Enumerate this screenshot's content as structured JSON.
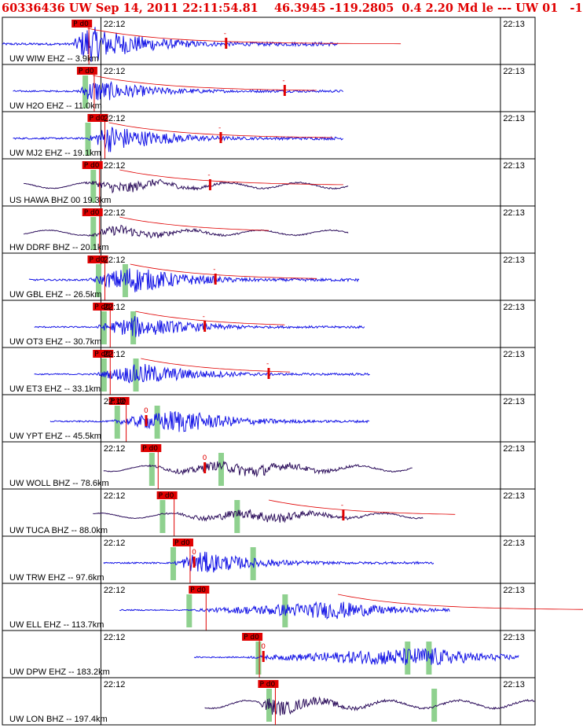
{
  "header": {
    "title": "60336436 UW Sep 14, 2011 22:11:54.81    46.3945 -119.2805  0.4 2.20 Md le --- UW 01   -1"
  },
  "colors": {
    "title": "#e00000",
    "short_period": "#1414e6",
    "broadband": "#2d0f5c",
    "pick_box": "#e00000",
    "coda_line": "#e00000",
    "phase_band": "#8fd18f",
    "frame": "#000000"
  },
  "chart_data": {
    "type": "seismogram",
    "x_axis": {
      "start_tick": "22:12",
      "end_tick": "22:13"
    },
    "traces": [
      {
        "label": "UW WIW EHZ -- 3.9km",
        "pick": "P d0",
        "tail_mark": "-",
        "type": "short",
        "amp": 0.95,
        "start": 0.0,
        "end": 0.63,
        "pick_x": 0.13,
        "peak": 0.16,
        "coda": 0.42,
        "tail_x": 0.42,
        "bands": []
      },
      {
        "label": "UW H2O EHZ -- 11.0km",
        "pick": "P d0",
        "tail_mark": "-",
        "type": "short",
        "amp": 0.6,
        "start": 0.02,
        "end": 0.64,
        "pick_x": 0.14,
        "peak": 0.17,
        "coda": 0.3,
        "tail_x": 0.53,
        "bands": [
          0.155
        ]
      },
      {
        "label": "UW MJ2 EHZ -- 19.1km",
        "pick": "P d0",
        "tail_mark": "-",
        "type": "short",
        "amp": 0.7,
        "start": 0.02,
        "end": 0.64,
        "pick_x": 0.16,
        "peak": 0.2,
        "coda": 0.3,
        "tail_x": 0.41,
        "bands": [
          0.16
        ]
      },
      {
        "label": "US HAWA BHZ 00 19.3km",
        "pick": "P d0",
        "tail_mark": "-",
        "type": "broad",
        "amp": 0.4,
        "start": 0.04,
        "end": 0.65,
        "pick_x": 0.15,
        "peak": 0.22,
        "coda": 0.3,
        "tail_x": 0.39,
        "bands": [
          0.17
        ]
      },
      {
        "label": "HW DDRF BHZ -- 20.1km",
        "pick": "P d0",
        "tail_mark": "",
        "type": "broad",
        "amp": 0.35,
        "start": 0.04,
        "end": 0.65,
        "pick_x": 0.15,
        "peak": 0.22,
        "coda": 0.2,
        "tail_x": 0.38,
        "bands": [
          0.17
        ]
      },
      {
        "label": "UW GBL EHZ -- 26.5km",
        "pick": "P d0",
        "tail_mark": "-",
        "type": "short",
        "amp": 0.7,
        "start": 0.05,
        "end": 0.67,
        "pick_x": 0.16,
        "peak": 0.24,
        "coda": 0.25,
        "tail_x": 0.4,
        "bands": [
          0.18,
          0.23
        ]
      },
      {
        "label": "UW OT3 EHZ -- 30.7km",
        "pick": "P d0",
        "tail_mark": "-",
        "type": "short",
        "amp": 0.55,
        "start": 0.06,
        "end": 0.68,
        "pick_x": 0.17,
        "peak": 0.25,
        "coda": 0.2,
        "tail_x": 0.38,
        "bands": [
          0.19,
          0.245
        ]
      },
      {
        "label": "UW ET3 EHZ -- 33.1km",
        "pick": "P d0",
        "tail_mark": "-",
        "type": "short",
        "amp": 0.55,
        "start": 0.06,
        "end": 0.69,
        "pick_x": 0.17,
        "peak": 0.26,
        "coda": 0.2,
        "tail_x": 0.5,
        "bands": [
          0.19,
          0.25
        ]
      },
      {
        "label": "UW YPT EHZ -- 45.5km",
        "pick": "P d0",
        "tail_mark": "0",
        "type": "short",
        "amp": 0.6,
        "start": 0.09,
        "end": 0.69,
        "pick_x": 0.2,
        "peak": 0.33,
        "coda": 0.0,
        "tail_x": 0.27,
        "bands": [
          0.215,
          0.29
        ]
      },
      {
        "label": "UW WOLL BHZ -- 78.6km",
        "pick": "P d0",
        "tail_mark": "0",
        "type": "broad",
        "amp": 0.4,
        "start": 0.19,
        "end": 0.77,
        "pick_x": 0.26,
        "peak": 0.47,
        "coda": 0.0,
        "tail_x": 0.38,
        "bands": [
          0.28,
          0.41
        ]
      },
      {
        "label": "UW TUCA BHZ -- 88.0km",
        "pick": "P d0",
        "tail_mark": "-",
        "type": "broad",
        "amp": 0.35,
        "start": 0.17,
        "end": 0.79,
        "pick_x": 0.29,
        "peak": 0.5,
        "coda": 0.25,
        "tail_x": 0.64,
        "bands": [
          0.3,
          0.44
        ]
      },
      {
        "label": "UW TRW EHZ -- 97.6km",
        "pick": "P d0",
        "tail_mark": "0",
        "type": "short",
        "amp": 0.6,
        "start": 0.19,
        "end": 0.81,
        "pick_x": 0.32,
        "peak": 0.37,
        "coda": 0.0,
        "tail_x": 0.36,
        "bands": [
          0.32,
          0.47
        ]
      },
      {
        "label": "UW ELL EHZ -- 113.7km",
        "pick": "P d0",
        "tail_mark": "",
        "type": "short",
        "amp": 0.45,
        "start": 0.22,
        "end": 0.84,
        "pick_x": 0.35,
        "peak": 0.63,
        "coda": 0.35,
        "tail_x": 0.95,
        "bands": [
          0.35,
          0.53
        ]
      },
      {
        "label": "UW DPW EHZ -- 183.2km",
        "pick": "P d0",
        "tail_mark": "0",
        "type": "short",
        "amp": 0.5,
        "start": 0.36,
        "end": 0.97,
        "pick_x": 0.45,
        "peak": 0.8,
        "coda": 0.0,
        "tail_x": 0.49,
        "bands": [
          0.48,
          0.76,
          0.8
        ]
      },
      {
        "label": "UW LON BHZ -- 197.4km",
        "pick": "P d0",
        "tail_mark": "",
        "type": "broad",
        "amp": 0.55,
        "start": 0.38,
        "end": 1.0,
        "pick_x": 0.48,
        "peak": 0.5,
        "coda": 0.0,
        "tail_x": 0.0,
        "bands": [
          0.5,
          0.81
        ]
      }
    ]
  }
}
